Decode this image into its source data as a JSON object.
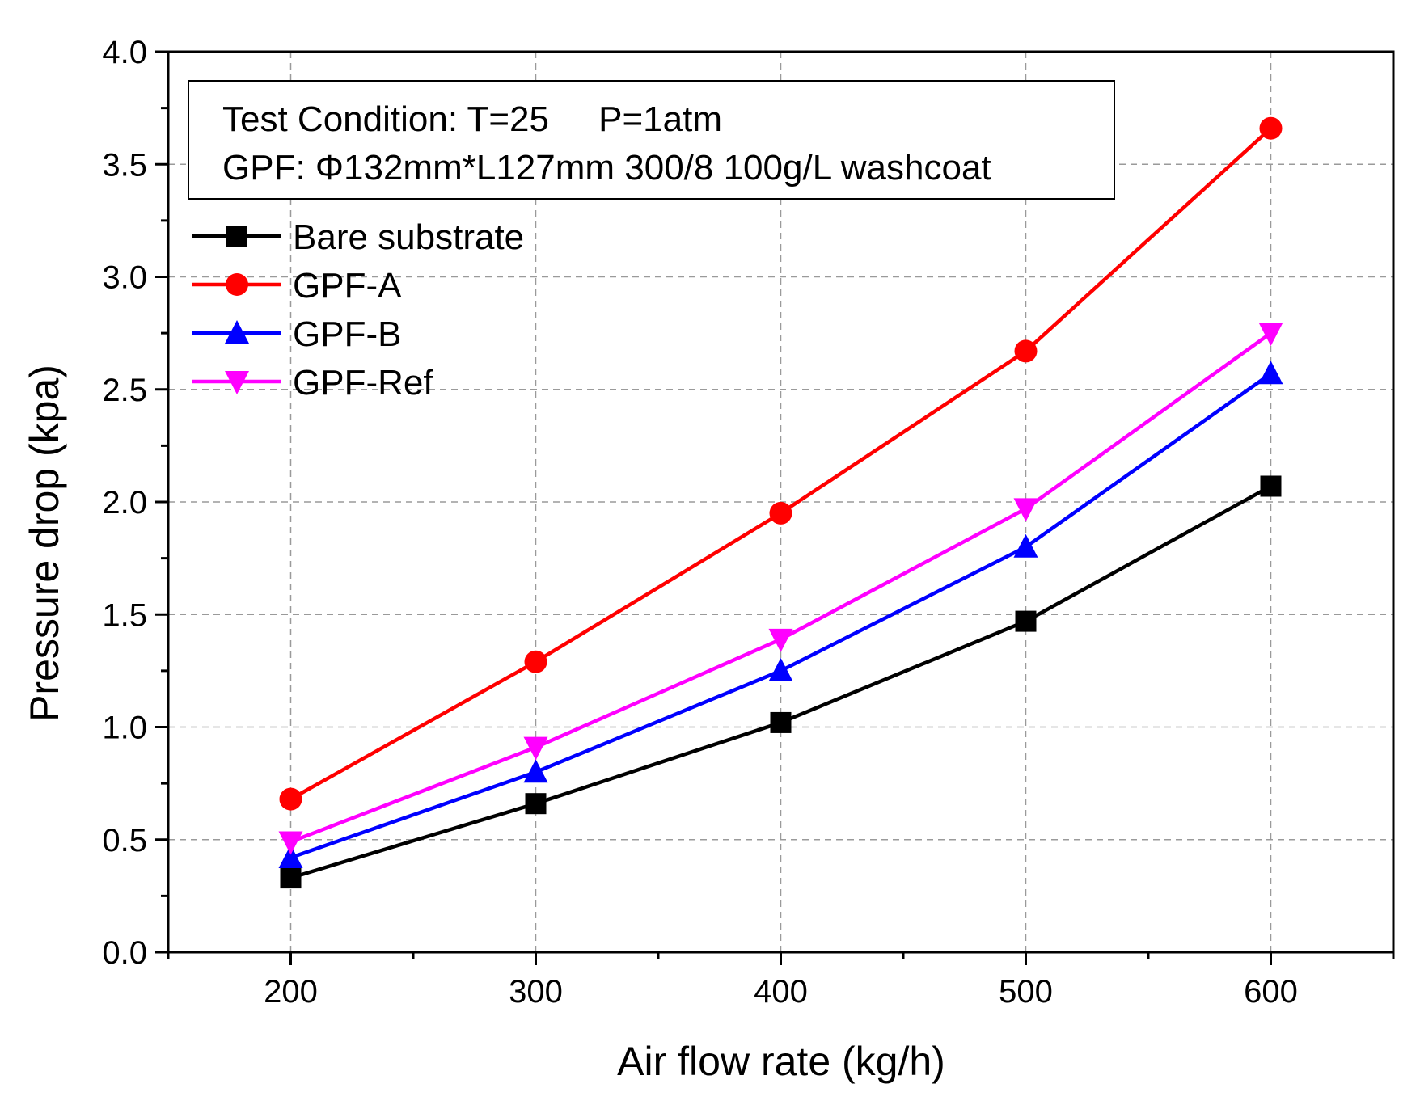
{
  "chart_data": {
    "type": "line",
    "title": "",
    "xlabel": "Air flow rate (kg/h)",
    "ylabel": "Pressure drop (kpa)",
    "xlim": [
      150,
      650
    ],
    "ylim": [
      0.0,
      4.0
    ],
    "x": [
      200,
      300,
      400,
      500,
      600
    ],
    "xticks": [
      "200",
      "300",
      "400",
      "500",
      "600"
    ],
    "yticks": [
      "0.0",
      "0.5",
      "1.0",
      "1.5",
      "2.0",
      "2.5",
      "3.0",
      "3.5",
      "4.0"
    ],
    "grid": true,
    "legend_position": "top-left",
    "annotation": {
      "line1": "Test Condition: T=25     P=1atm",
      "line2": "GPF: Φ132mm*L127mm 300/8 100g/L washcoat"
    },
    "series": [
      {
        "name": "Bare substrate",
        "color": "#000000",
        "marker": "square",
        "values": [
          0.33,
          0.66,
          1.02,
          1.47,
          2.07
        ]
      },
      {
        "name": "GPF-A",
        "color": "#ff0000",
        "marker": "circle",
        "values": [
          0.68,
          1.29,
          1.95,
          2.67,
          3.66
        ]
      },
      {
        "name": "GPF-B",
        "color": "#0000ff",
        "marker": "triangle-up",
        "values": [
          0.42,
          0.8,
          1.25,
          1.8,
          2.57
        ]
      },
      {
        "name": "GPF-Ref",
        "color": "#ff00ff",
        "marker": "triangle-down",
        "values": [
          0.49,
          0.91,
          1.39,
          1.97,
          2.75
        ]
      }
    ]
  }
}
